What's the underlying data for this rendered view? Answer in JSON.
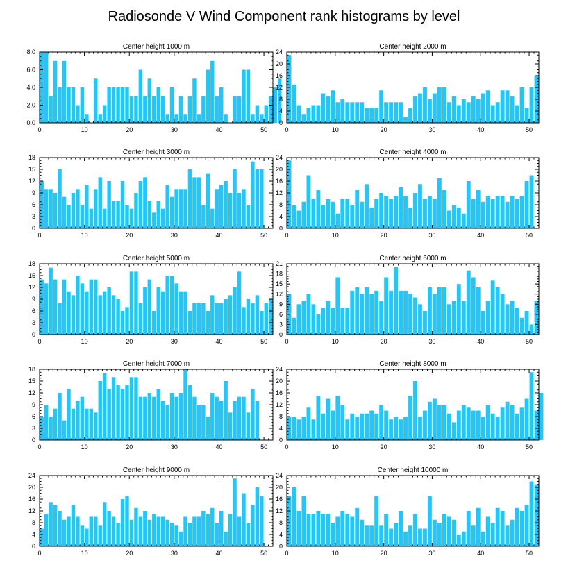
{
  "title": "Radiosonde V Wind Component rank histograms by level",
  "bar_color": "#1ec8ff",
  "chart_data": [
    {
      "type": "bar",
      "subtitle": "Center height 1000 m",
      "ylim": [
        0,
        8
      ],
      "yticks": [
        "0.0",
        "2.0",
        "4.0",
        "6.0",
        "8.0"
      ],
      "xlim": [
        0,
        52
      ],
      "xticks": [
        "0",
        "10",
        "20",
        "30",
        "40",
        "50"
      ],
      "values": [
        8,
        8,
        3,
        7,
        4,
        7,
        4,
        4,
        2,
        4,
        1,
        0,
        5,
        1,
        2,
        4,
        4,
        4,
        4,
        4,
        3,
        3,
        6,
        3,
        5,
        3,
        4,
        3,
        1,
        4,
        1,
        3,
        1,
        3,
        5,
        1,
        3,
        6,
        7,
        3,
        4,
        1,
        0,
        3,
        3,
        6,
        6,
        1,
        2,
        1,
        2,
        3,
        4,
        5
      ]
    },
    {
      "type": "bar",
      "subtitle": "Center height 2000 m",
      "ylim": [
        0,
        24
      ],
      "yticks": [
        "0",
        "4",
        "8",
        "12",
        "16",
        "20",
        "24"
      ],
      "xlim": [
        0,
        52
      ],
      "xticks": [
        "0",
        "10",
        "20",
        "30",
        "40",
        "50"
      ],
      "values": [
        23,
        13,
        6,
        3,
        5,
        6,
        6,
        10,
        9,
        11,
        7,
        8,
        7,
        7,
        7,
        7,
        5,
        5,
        5,
        11,
        7,
        7,
        7,
        7,
        2,
        5,
        9,
        10,
        12,
        8,
        10,
        12,
        12,
        7,
        9,
        6,
        8,
        7,
        9,
        8,
        10,
        11,
        6,
        7,
        11,
        11,
        9,
        6,
        12,
        5,
        12,
        16
      ]
    },
    {
      "type": "bar",
      "subtitle": "Center height 3000 m",
      "ylim": [
        0,
        18
      ],
      "yticks": [
        "0",
        "3",
        "6",
        "9",
        "12",
        "15",
        "18"
      ],
      "xlim": [
        0,
        52
      ],
      "xticks": [
        "0",
        "10",
        "20",
        "30",
        "40",
        "50"
      ],
      "values": [
        12,
        10,
        10,
        9,
        15,
        8,
        6,
        9,
        10,
        6,
        11,
        5,
        10,
        13,
        5,
        12,
        7,
        7,
        12,
        6,
        5,
        9,
        12,
        13,
        7,
        4,
        7,
        5,
        11,
        8,
        10,
        10,
        10,
        15,
        13,
        13,
        6,
        14,
        5,
        10,
        11,
        12,
        9,
        15,
        9,
        10,
        6,
        17,
        15,
        15
      ]
    },
    {
      "type": "bar",
      "subtitle": "Center height 4000 m",
      "ylim": [
        0,
        24
      ],
      "yticks": [
        "0",
        "4",
        "8",
        "12",
        "16",
        "20",
        "24"
      ],
      "xlim": [
        0,
        52
      ],
      "xticks": [
        "0",
        "10",
        "20",
        "30",
        "40",
        "50"
      ],
      "values": [
        23,
        8,
        6,
        9,
        18,
        10,
        13,
        8,
        10,
        9,
        5,
        10,
        10,
        8,
        13,
        9,
        15,
        7,
        10,
        12,
        11,
        10,
        11,
        14,
        11,
        7,
        12,
        15,
        10,
        11,
        10,
        17,
        13,
        6,
        8,
        7,
        5,
        16,
        10,
        13,
        9,
        11,
        10,
        11,
        11,
        9,
        11,
        10,
        11,
        16,
        18
      ]
    },
    {
      "type": "bar",
      "subtitle": "Center height 5000 m",
      "ylim": [
        0,
        18
      ],
      "yticks": [
        "0",
        "3",
        "6",
        "9",
        "12",
        "15",
        "18"
      ],
      "xlim": [
        0,
        52
      ],
      "xticks": [
        "0",
        "10",
        "20",
        "30",
        "40",
        "50"
      ],
      "values": [
        14,
        13,
        17,
        14,
        8,
        14,
        11,
        10,
        15,
        13,
        11,
        14,
        14,
        10,
        11,
        12,
        10,
        9,
        6,
        7,
        16,
        16,
        8,
        12,
        14,
        6,
        12,
        11,
        15,
        15,
        13,
        11,
        11,
        6,
        8,
        8,
        8,
        6,
        10,
        8,
        8,
        9,
        10,
        12,
        16,
        7,
        9,
        8,
        10,
        6,
        8,
        9
      ]
    },
    {
      "type": "bar",
      "subtitle": "Center height 6000 m",
      "ylim": [
        0,
        21
      ],
      "yticks": [
        "0",
        "3",
        "6",
        "9",
        "12",
        "15",
        "18",
        "21"
      ],
      "xlim": [
        0,
        52
      ],
      "xticks": [
        "0",
        "10",
        "20",
        "30",
        "40",
        "50"
      ],
      "values": [
        12,
        5,
        9,
        10,
        12,
        9,
        6,
        8,
        10,
        8,
        17,
        8,
        8,
        13,
        14,
        12,
        14,
        12,
        13,
        10,
        17,
        13,
        20,
        13,
        13,
        12,
        11,
        9,
        7,
        14,
        12,
        14,
        14,
        9,
        10,
        15,
        10,
        19,
        17,
        14,
        7,
        10,
        16,
        14,
        12,
        9,
        10,
        8,
        5,
        7,
        3,
        10
      ]
    },
    {
      "type": "bar",
      "subtitle": "Center height 7000 m",
      "ylim": [
        0,
        18
      ],
      "yticks": [
        "0",
        "3",
        "6",
        "9",
        "12",
        "15",
        "18"
      ],
      "xlim": [
        0,
        52
      ],
      "xticks": [
        "0",
        "10",
        "20",
        "30",
        "40",
        "50"
      ],
      "values": [
        6,
        9,
        6,
        8,
        12,
        5,
        13,
        8,
        10,
        11,
        8,
        8,
        7,
        15,
        17,
        13,
        16,
        14,
        13,
        14,
        16,
        16,
        11,
        11,
        12,
        11,
        13,
        10,
        9,
        12,
        11,
        12,
        18,
        14,
        11,
        9,
        9,
        6,
        12,
        11,
        10,
        15,
        7,
        10,
        11,
        11,
        7,
        13,
        10
      ]
    },
    {
      "type": "bar",
      "subtitle": "Center height 8000 m",
      "ylim": [
        0,
        24
      ],
      "yticks": [
        "0",
        "4",
        "8",
        "12",
        "16",
        "20",
        "24"
      ],
      "xlim": [
        0,
        52
      ],
      "xticks": [
        "0",
        "10",
        "20",
        "30",
        "40",
        "50"
      ],
      "values": [
        8,
        8,
        7,
        8,
        11,
        7,
        15,
        9,
        14,
        10,
        15,
        12,
        7,
        9,
        8,
        9,
        9,
        10,
        9,
        12,
        10,
        7,
        8,
        7,
        8,
        15,
        20,
        8,
        10,
        13,
        14,
        12,
        12,
        9,
        6,
        10,
        12,
        11,
        10,
        10,
        8,
        12,
        9,
        8,
        11,
        13,
        12,
        9,
        11,
        14,
        23,
        10,
        16
      ]
    },
    {
      "type": "bar",
      "subtitle": "Center height 9000 m",
      "ylim": [
        0,
        24
      ],
      "yticks": [
        "0",
        "4",
        "8",
        "12",
        "16",
        "20",
        "24"
      ],
      "xlim": [
        0,
        52
      ],
      "xticks": [
        "0",
        "10",
        "20",
        "30",
        "40",
        "50"
      ],
      "values": [
        6,
        11,
        15,
        14,
        12,
        9,
        10,
        14,
        10,
        7,
        6,
        10,
        10,
        7,
        15,
        12,
        10,
        8,
        16,
        17,
        9,
        13,
        10,
        12,
        9,
        11,
        10,
        10,
        9,
        8,
        7,
        5,
        10,
        8,
        10,
        10,
        12,
        11,
        13,
        8,
        12,
        5,
        11,
        23,
        10,
        18,
        8,
        14,
        20,
        17
      ]
    },
    {
      "type": "bar",
      "subtitle": "Center height 10000 m",
      "ylim": [
        0,
        24
      ],
      "yticks": [
        "0",
        "4",
        "8",
        "12",
        "16",
        "20",
        "24"
      ],
      "xlim": [
        0,
        52
      ],
      "xticks": [
        "0",
        "10",
        "20",
        "30",
        "40",
        "50"
      ],
      "values": [
        17,
        20,
        12,
        17,
        11,
        11,
        12,
        11,
        11,
        8,
        10,
        12,
        11,
        10,
        13,
        9,
        7,
        7,
        17,
        7,
        11,
        6,
        8,
        12,
        5,
        7,
        11,
        6,
        6,
        17,
        9,
        8,
        11,
        10,
        9,
        4,
        5,
        12,
        7,
        13,
        5,
        10,
        8,
        13,
        12,
        7,
        9,
        13,
        12,
        14,
        22,
        21
      ]
    }
  ]
}
